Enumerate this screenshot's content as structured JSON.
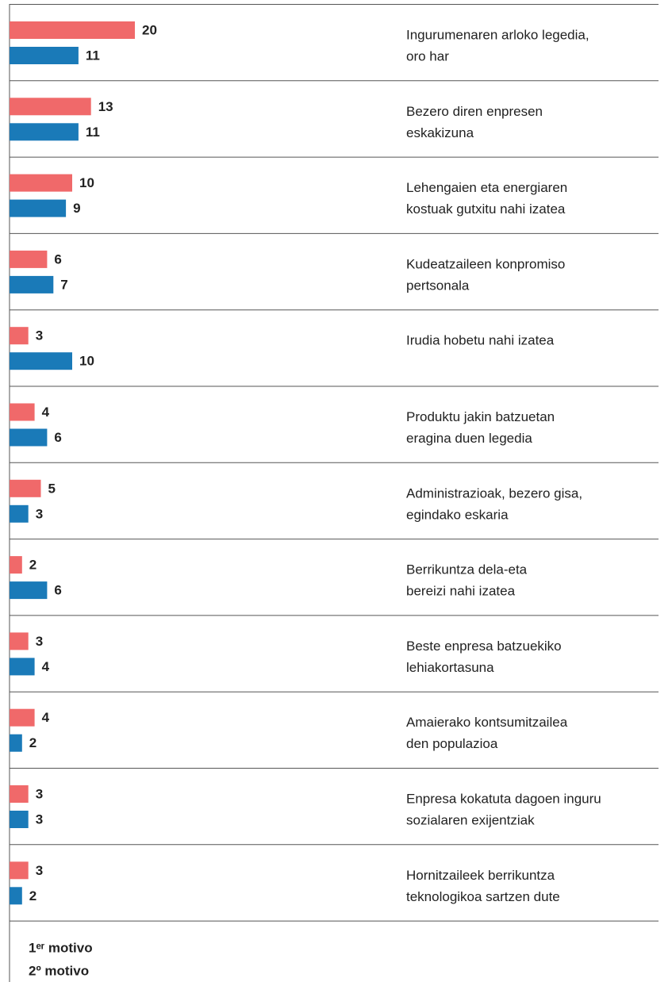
{
  "chart_data": {
    "type": "hbar",
    "categories": [
      [
        "Ingurumenaren arloko legedia,",
        "oro har"
      ],
      [
        "Bezero diren enpresen",
        "eskakizuna"
      ],
      [
        "Lehengaien eta energiaren",
        "kostuak gutxitu nahi izatea"
      ],
      [
        "Kudeatzaileen konpromiso",
        "pertsonala"
      ],
      [
        "Irudia hobetu nahi izatea"
      ],
      [
        "Produktu jakin batzuetan",
        "eragina duen legedia"
      ],
      [
        "Administrazioak, bezero gisa,",
        "egindako eskaria"
      ],
      [
        "Berrikuntza dela-eta",
        "bereizi nahi izatea"
      ],
      [
        "Beste enpresa batzuekiko",
        "lehiakortasuna"
      ],
      [
        "Amaierako kontsumitzailea",
        "den populazioa"
      ],
      [
        "Enpresa kokatuta dagoen inguru",
        "sozialaren exijentziak"
      ],
      [
        "Hornitzaileek berrikuntza",
        "teknologikoa sartzen dute"
      ]
    ],
    "series": [
      {
        "name": "1ᵉʳ motivo",
        "color": "#f0696a",
        "values": [
          20,
          13,
          10,
          6,
          3,
          4,
          5,
          2,
          3,
          4,
          3,
          3
        ]
      },
      {
        "name": "2º motivo",
        "color": "#1a7ab8",
        "values": [
          11,
          11,
          9,
          7,
          10,
          6,
          3,
          6,
          4,
          2,
          3,
          2
        ]
      }
    ],
    "xlim": [
      0,
      20
    ]
  }
}
